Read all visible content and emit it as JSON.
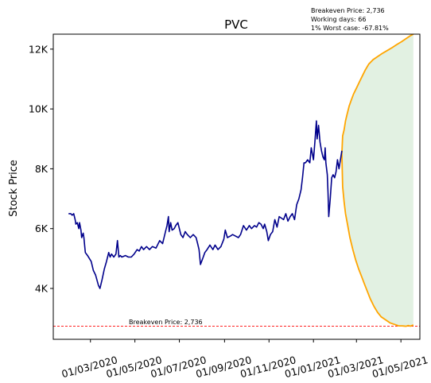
{
  "chart_data": {
    "type": "line",
    "title": "PVC",
    "xlabel": "",
    "ylabel": "Stock Price",
    "ylim": [
      2300,
      12500
    ],
    "xlim": [
      "2020-01-10",
      "2021-05-27"
    ],
    "x_ticks": [
      "2020-03-01",
      "2020-05-01",
      "2020-07-01",
      "2020-09-01",
      "2020-11-01",
      "2021-01-01",
      "2021-03-01",
      "2021-05-01"
    ],
    "x_tick_labels": [
      "01/03/2020",
      "01/05/2020",
      "01/07/2020",
      "01/09/2020",
      "01/11/2020",
      "01/01/2021",
      "01/03/2021",
      "01/05/2021"
    ],
    "y_ticks": [
      4000,
      6000,
      8000,
      10000,
      12000
    ],
    "y_tick_labels": [
      "4K",
      "6K",
      "8K",
      "10K",
      "12K"
    ],
    "grid": false,
    "info_lines": [
      "Breakeven Price: 2,736",
      "Working days: 66",
      "1% Worst case: -67.81%"
    ],
    "breakeven": {
      "value": 2736,
      "label": "Breakeven Price: 2,736",
      "color": "#ff0000"
    },
    "series": [
      {
        "role": "history",
        "color": "#00008b",
        "points": [
          [
            "2020-01-31",
            6500
          ],
          [
            "2020-02-03",
            6500
          ],
          [
            "2020-02-05",
            6450
          ],
          [
            "2020-02-07",
            6500
          ],
          [
            "2020-02-09",
            6300
          ],
          [
            "2020-02-10",
            6150
          ],
          [
            "2020-02-12",
            6200
          ],
          [
            "2020-02-14",
            6000
          ],
          [
            "2020-02-15",
            6200
          ],
          [
            "2020-02-17",
            5950
          ],
          [
            "2020-02-18",
            5700
          ],
          [
            "2020-02-20",
            5850
          ],
          [
            "2020-02-21",
            5700
          ],
          [
            "2020-02-23",
            5200
          ],
          [
            "2020-02-26",
            5100
          ],
          [
            "2020-03-02",
            4900
          ],
          [
            "2020-03-05",
            4600
          ],
          [
            "2020-03-08",
            4450
          ],
          [
            "2020-03-12",
            4100
          ],
          [
            "2020-03-14",
            4000
          ],
          [
            "2020-03-17",
            4300
          ],
          [
            "2020-03-20",
            4650
          ],
          [
            "2020-03-23",
            4900
          ],
          [
            "2020-03-26",
            5200
          ],
          [
            "2020-03-28",
            5050
          ],
          [
            "2020-03-30",
            5150
          ],
          [
            "2020-04-02",
            5050
          ],
          [
            "2020-04-05",
            5150
          ],
          [
            "2020-04-07",
            5600
          ],
          [
            "2020-04-09",
            5050
          ],
          [
            "2020-04-11",
            5100
          ],
          [
            "2020-04-13",
            5050
          ],
          [
            "2020-04-18",
            5100
          ],
          [
            "2020-04-22",
            5050
          ],
          [
            "2020-04-26",
            5050
          ],
          [
            "2020-04-30",
            5150
          ],
          [
            "2020-05-04",
            5300
          ],
          [
            "2020-05-07",
            5250
          ],
          [
            "2020-05-10",
            5400
          ],
          [
            "2020-05-13",
            5300
          ],
          [
            "2020-05-17",
            5400
          ],
          [
            "2020-05-21",
            5300
          ],
          [
            "2020-05-25",
            5400
          ],
          [
            "2020-05-30",
            5350
          ],
          [
            "2020-06-04",
            5600
          ],
          [
            "2020-06-08",
            5500
          ],
          [
            "2020-06-12",
            5900
          ],
          [
            "2020-06-14",
            6100
          ],
          [
            "2020-06-16",
            6400
          ],
          [
            "2020-06-17",
            5900
          ],
          [
            "2020-06-19",
            6200
          ],
          [
            "2020-06-21",
            5950
          ],
          [
            "2020-06-24",
            6000
          ],
          [
            "2020-06-26",
            6100
          ],
          [
            "2020-06-29",
            6200
          ],
          [
            "2020-07-03",
            5800
          ],
          [
            "2020-07-06",
            5700
          ],
          [
            "2020-07-09",
            5900
          ],
          [
            "2020-07-12",
            5800
          ],
          [
            "2020-07-16",
            5700
          ],
          [
            "2020-07-20",
            5800
          ],
          [
            "2020-07-24",
            5700
          ],
          [
            "2020-07-26",
            5500
          ],
          [
            "2020-07-28",
            5300
          ],
          [
            "2020-07-30",
            4800
          ],
          [
            "2020-08-02",
            5000
          ],
          [
            "2020-08-05",
            5200
          ],
          [
            "2020-08-08",
            5300
          ],
          [
            "2020-08-12",
            5450
          ],
          [
            "2020-08-16",
            5300
          ],
          [
            "2020-08-19",
            5450
          ],
          [
            "2020-08-23",
            5300
          ],
          [
            "2020-08-27",
            5400
          ],
          [
            "2020-08-31",
            5650
          ],
          [
            "2020-09-02",
            5950
          ],
          [
            "2020-09-05",
            5700
          ],
          [
            "2020-09-09",
            5750
          ],
          [
            "2020-09-12",
            5800
          ],
          [
            "2020-09-16",
            5750
          ],
          [
            "2020-09-20",
            5700
          ],
          [
            "2020-09-23",
            5800
          ],
          [
            "2020-09-27",
            6100
          ],
          [
            "2020-10-01",
            5950
          ],
          [
            "2020-10-05",
            6100
          ],
          [
            "2020-10-08",
            6000
          ],
          [
            "2020-10-12",
            6100
          ],
          [
            "2020-10-15",
            6050
          ],
          [
            "2020-10-18",
            6200
          ],
          [
            "2020-10-21",
            6150
          ],
          [
            "2020-10-24",
            6000
          ],
          [
            "2020-10-26",
            6150
          ],
          [
            "2020-10-29",
            5900
          ],
          [
            "2020-10-31",
            5600
          ],
          [
            "2020-11-03",
            5800
          ],
          [
            "2020-11-06",
            5900
          ],
          [
            "2020-11-09",
            6300
          ],
          [
            "2020-11-12",
            6050
          ],
          [
            "2020-11-15",
            6400
          ],
          [
            "2020-11-18",
            6350
          ],
          [
            "2020-11-21",
            6300
          ],
          [
            "2020-11-24",
            6500
          ],
          [
            "2020-11-27",
            6250
          ],
          [
            "2020-11-30",
            6400
          ],
          [
            "2020-12-03",
            6500
          ],
          [
            "2020-12-06",
            6300
          ],
          [
            "2020-12-09",
            6800
          ],
          [
            "2020-12-12",
            7000
          ],
          [
            "2020-12-15",
            7300
          ],
          [
            "2020-12-17",
            7700
          ],
          [
            "2020-12-19",
            8200
          ],
          [
            "2020-12-21",
            8200
          ],
          [
            "2020-12-24",
            8300
          ],
          [
            "2020-12-27",
            8200
          ],
          [
            "2020-12-29",
            8700
          ],
          [
            "2021-01-01",
            8300
          ],
          [
            "2021-01-03",
            8900
          ],
          [
            "2021-01-05",
            9600
          ],
          [
            "2021-01-06",
            9000
          ],
          [
            "2021-01-08",
            9450
          ],
          [
            "2021-01-10",
            8900
          ],
          [
            "2021-01-12",
            8600
          ],
          [
            "2021-01-14",
            8400
          ],
          [
            "2021-01-16",
            8300
          ],
          [
            "2021-01-17",
            8700
          ],
          [
            "2021-01-18",
            8200
          ],
          [
            "2021-01-20",
            7800
          ],
          [
            "2021-01-21",
            7200
          ],
          [
            "2021-01-22",
            6400
          ],
          [
            "2021-01-24",
            7000
          ],
          [
            "2021-01-26",
            7700
          ],
          [
            "2021-01-28",
            7800
          ],
          [
            "2021-01-30",
            7700
          ],
          [
            "2021-02-01",
            7900
          ],
          [
            "2021-02-03",
            8300
          ],
          [
            "2021-02-05",
            8000
          ],
          [
            "2021-02-07",
            8300
          ],
          [
            "2021-02-09",
            8600
          ]
        ]
      },
      {
        "role": "upper_projection",
        "color": "#ffa500",
        "points": [
          [
            "2021-02-09",
            8500
          ],
          [
            "2021-02-10",
            9100
          ],
          [
            "2021-02-12",
            9300
          ],
          [
            "2021-02-14",
            9600
          ],
          [
            "2021-02-16",
            9800
          ],
          [
            "2021-02-19",
            10100
          ],
          [
            "2021-02-22",
            10300
          ],
          [
            "2021-02-25",
            10500
          ],
          [
            "2021-03-01",
            10700
          ],
          [
            "2021-03-05",
            10900
          ],
          [
            "2021-03-09",
            11100
          ],
          [
            "2021-03-13",
            11300
          ],
          [
            "2021-03-18",
            11500
          ],
          [
            "2021-03-24",
            11650
          ],
          [
            "2021-03-30",
            11750
          ],
          [
            "2021-04-05",
            11850
          ],
          [
            "2021-04-12",
            11950
          ],
          [
            "2021-04-19",
            12050
          ],
          [
            "2021-04-25",
            12150
          ],
          [
            "2021-05-02",
            12250
          ],
          [
            "2021-05-08",
            12350
          ],
          [
            "2021-05-14",
            12450
          ],
          [
            "2021-05-18",
            12500
          ]
        ]
      },
      {
        "role": "lower_projection",
        "color": "#ffa500",
        "points": [
          [
            "2021-02-09",
            8500
          ],
          [
            "2021-02-10",
            7400
          ],
          [
            "2021-02-12",
            6900
          ],
          [
            "2021-02-14",
            6500
          ],
          [
            "2021-02-17",
            6100
          ],
          [
            "2021-02-20",
            5700
          ],
          [
            "2021-02-24",
            5300
          ],
          [
            "2021-02-28",
            4950
          ],
          [
            "2021-03-04",
            4650
          ],
          [
            "2021-03-08",
            4400
          ],
          [
            "2021-03-12",
            4150
          ],
          [
            "2021-03-16",
            3900
          ],
          [
            "2021-03-20",
            3650
          ],
          [
            "2021-03-25",
            3400
          ],
          [
            "2021-03-30",
            3200
          ],
          [
            "2021-04-04",
            3050
          ],
          [
            "2021-04-10",
            2950
          ],
          [
            "2021-04-16",
            2850
          ],
          [
            "2021-04-22",
            2800
          ],
          [
            "2021-04-28",
            2750
          ],
          [
            "2021-05-03",
            2750
          ],
          [
            "2021-05-08",
            2736
          ],
          [
            "2021-05-11",
            2760
          ],
          [
            "2021-05-14",
            2740
          ],
          [
            "2021-05-18",
            2780
          ]
        ]
      }
    ],
    "band_fill_color": "#d8ecd8"
  }
}
